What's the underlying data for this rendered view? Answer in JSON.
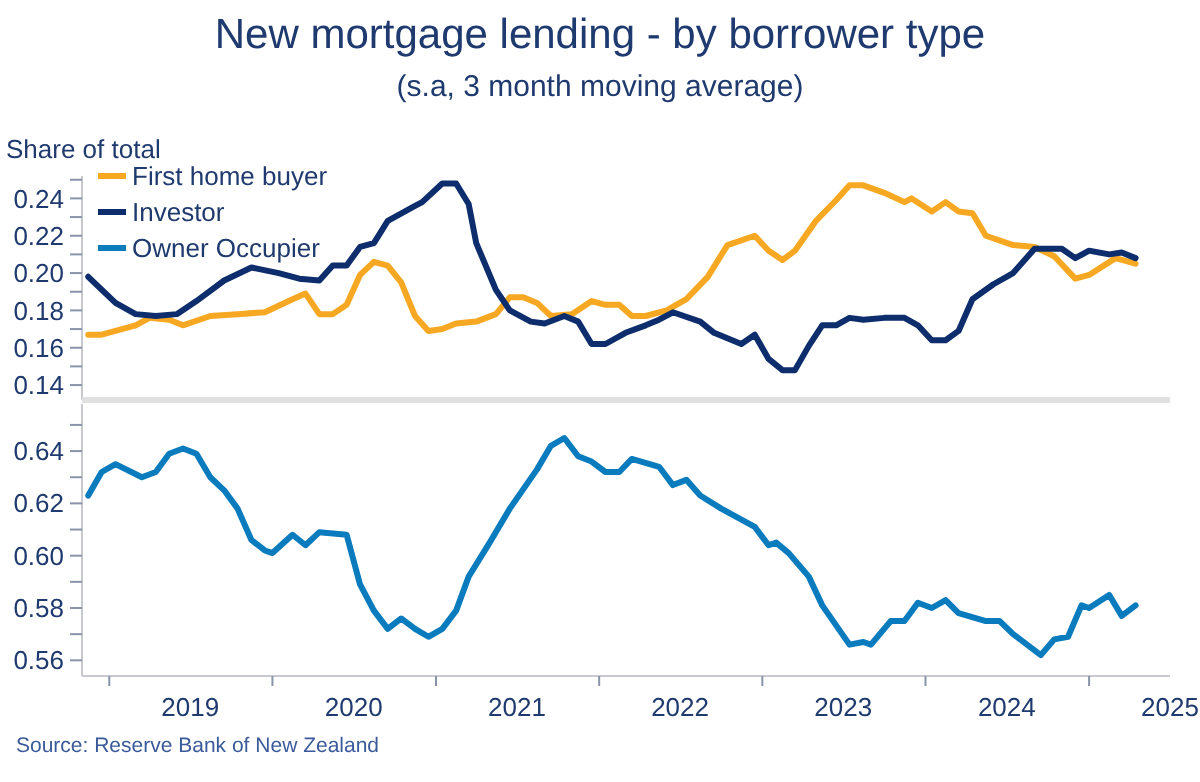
{
  "chart_data": [
    {
      "type": "line",
      "title": "New mortgage lending - by borrower type",
      "subtitle": "(s.a, 3 month moving average)",
      "ylabel": "Share of total",
      "legend": "top left",
      "tick_labels": "y",
      "xlim": [
        "2018-11",
        "2025-07"
      ],
      "ylim": [
        0.132,
        0.252
      ],
      "yticks": [
        {
          "value": 0.14,
          "label": "0.14"
        },
        {
          "value": 0.15,
          "label": null
        },
        {
          "value": 0.16,
          "label": "0.16"
        },
        {
          "value": 0.17,
          "label": null
        },
        {
          "value": 0.18,
          "label": "0.18"
        },
        {
          "value": 0.19,
          "label": null
        },
        {
          "value": 0.2,
          "label": "0.20"
        },
        {
          "value": 0.21,
          "label": null
        },
        {
          "value": 0.22,
          "label": "0.22"
        },
        {
          "value": 0.23,
          "label": null
        },
        {
          "value": 0.24,
          "label": "0.24"
        },
        {
          "value": 0.25,
          "label": null
        }
      ],
      "series": [
        {
          "name": "First home buyer",
          "color": "#f7a823",
          "x": [
            "2018-11-15",
            "2018-12-15",
            "2019-03-01",
            "2019-04-01",
            "2019-05-15",
            "2019-06-15",
            "2019-08-15",
            "2019-10-15",
            "2019-12-15",
            "2020-02-15",
            "2020-03-15",
            "2020-04-15",
            "2020-05-15",
            "2020-06-15",
            "2020-07-15",
            "2020-08-15",
            "2020-09-15",
            "2020-10-15",
            "2020-11-15",
            "2020-12-15",
            "2021-01-15",
            "2021-02-15",
            "2021-04-01",
            "2021-05-15",
            "2021-06-15",
            "2021-07-15",
            "2021-08-15",
            "2021-09-15",
            "2021-11-01",
            "2021-12-15",
            "2022-01-15",
            "2022-02-15",
            "2022-03-15",
            "2022-04-15",
            "2022-06-01",
            "2022-07-15",
            "2022-09-01",
            "2022-10-15",
            "2022-12-15",
            "2023-01-15",
            "2023-02-15",
            "2023-03-15",
            "2023-05-01",
            "2023-06-15",
            "2023-07-15",
            "2023-08-15",
            "2023-10-01",
            "2023-11-15",
            "2023-12-01",
            "2024-01-15",
            "2024-02-15",
            "2024-03-15",
            "2024-04-15",
            "2024-05-15",
            "2024-07-15",
            "2024-09-01",
            "2024-10-15",
            "2024-12-01",
            "2025-01-01",
            "2025-03-01",
            "2025-04-15"
          ],
          "values": [
            0.167,
            0.167,
            0.172,
            0.176,
            0.175,
            0.172,
            0.177,
            0.178,
            0.179,
            0.186,
            0.189,
            0.178,
            0.178,
            0.183,
            0.199,
            0.206,
            0.204,
            0.195,
            0.177,
            0.169,
            0.17,
            0.173,
            0.174,
            0.178,
            0.187,
            0.187,
            0.184,
            0.177,
            0.178,
            0.185,
            0.183,
            0.183,
            0.177,
            0.177,
            0.18,
            0.186,
            0.198,
            0.215,
            0.22,
            0.212,
            0.207,
            0.212,
            0.228,
            0.239,
            0.247,
            0.247,
            0.243,
            0.238,
            0.24,
            0.233,
            0.238,
            0.233,
            0.232,
            0.22,
            0.215,
            0.214,
            0.209,
            0.197,
            0.199,
            0.208,
            0.205
          ]
        },
        {
          "name": "Investor",
          "color": "#0d2d6c",
          "x": [
            "2018-11-15",
            "2019-01-15",
            "2019-03-01",
            "2019-04-15",
            "2019-06-01",
            "2019-07-15",
            "2019-09-15",
            "2019-11-15",
            "2020-01-15",
            "2020-03-01",
            "2020-04-15",
            "2020-05-15",
            "2020-06-15",
            "2020-07-15",
            "2020-08-15",
            "2020-09-15",
            "2020-11-15",
            "2020-12-01",
            "2021-01-15",
            "2021-02-15",
            "2021-03-15",
            "2021-04-01",
            "2021-05-15",
            "2021-06-15",
            "2021-08-01",
            "2021-09-01",
            "2021-10-15",
            "2021-11-15",
            "2021-12-15",
            "2022-01-15",
            "2022-03-01",
            "2022-04-15",
            "2022-05-15",
            "2022-06-15",
            "2022-08-15",
            "2022-09-15",
            "2022-11-15",
            "2022-12-15",
            "2023-01-15",
            "2023-02-15",
            "2023-03-15",
            "2023-04-15",
            "2023-05-15",
            "2023-06-15",
            "2023-07-15",
            "2023-08-15",
            "2023-10-01",
            "2023-11-15",
            "2023-12-15",
            "2024-01-15",
            "2024-02-15",
            "2024-03-15",
            "2024-04-15",
            "2024-06-01",
            "2024-07-15",
            "2024-09-01",
            "2024-11-01",
            "2024-12-01",
            "2025-01-01",
            "2025-02-15",
            "2025-03-15",
            "2025-04-15"
          ],
          "values": [
            0.198,
            0.184,
            0.178,
            0.177,
            0.178,
            0.185,
            0.196,
            0.203,
            0.2,
            0.197,
            0.196,
            0.204,
            0.204,
            0.214,
            0.216,
            0.228,
            0.236,
            0.238,
            0.248,
            0.248,
            0.237,
            0.216,
            0.191,
            0.18,
            0.174,
            0.173,
            0.177,
            0.174,
            0.162,
            0.162,
            0.168,
            0.172,
            0.175,
            0.179,
            0.174,
            0.168,
            0.162,
            0.167,
            0.154,
            0.148,
            0.148,
            0.161,
            0.172,
            0.172,
            0.176,
            0.175,
            0.176,
            0.176,
            0.172,
            0.164,
            0.164,
            0.169,
            0.186,
            0.194,
            0.2,
            0.213,
            0.213,
            0.208,
            0.212,
            0.21,
            0.211,
            0.208
          ]
        }
      ]
    },
    {
      "type": "line",
      "annotations": [
        "Source: Reserve Bank of New Zealand"
      ],
      "xlim": [
        "2018-11",
        "2025-07"
      ],
      "ylim": [
        0.554,
        0.658
      ],
      "xticks": [
        {
          "value": "2019-01-01",
          "label": null
        },
        {
          "value": "2019-07-01",
          "label": "2019"
        },
        {
          "value": "2020-01-01",
          "label": null
        },
        {
          "value": "2020-07-01",
          "label": "2020"
        },
        {
          "value": "2021-01-01",
          "label": null
        },
        {
          "value": "2021-07-01",
          "label": "2021"
        },
        {
          "value": "2022-01-01",
          "label": null
        },
        {
          "value": "2022-07-01",
          "label": "2022"
        },
        {
          "value": "2023-01-01",
          "label": null
        },
        {
          "value": "2023-07-01",
          "label": "2023"
        },
        {
          "value": "2024-01-01",
          "label": null
        },
        {
          "value": "2024-07-01",
          "label": "2024"
        },
        {
          "value": "2025-01-01",
          "label": null
        },
        {
          "value": "2025-07-01",
          "label": "2025"
        }
      ],
      "yticks": [
        {
          "value": 0.56,
          "label": "0.56"
        },
        {
          "value": 0.57,
          "label": null
        },
        {
          "value": 0.58,
          "label": "0.58"
        },
        {
          "value": 0.59,
          "label": null
        },
        {
          "value": 0.6,
          "label": "0.60"
        },
        {
          "value": 0.61,
          "label": null
        },
        {
          "value": 0.62,
          "label": "0.62"
        },
        {
          "value": 0.63,
          "label": null
        },
        {
          "value": 0.64,
          "label": "0.64"
        },
        {
          "value": 0.65,
          "label": null
        }
      ],
      "series": [
        {
          "name": "Owner Occupier",
          "color": "#0a7bbd",
          "x": [
            "2018-11-15",
            "2018-12-15",
            "2019-01-15",
            "2019-03-15",
            "2019-04-15",
            "2019-05-15",
            "2019-06-15",
            "2019-07-15",
            "2019-08-15",
            "2019-09-15",
            "2019-10-15",
            "2019-11-15",
            "2019-12-15",
            "2020-01-01",
            "2020-02-15",
            "2020-03-15",
            "2020-04-15",
            "2020-06-15",
            "2020-07-15",
            "2020-08-15",
            "2020-09-15",
            "2020-10-15",
            "2020-11-15",
            "2020-12-15",
            "2021-01-15",
            "2021-02-15",
            "2021-03-15",
            "2021-05-01",
            "2021-06-15",
            "2021-08-15",
            "2021-09-15",
            "2021-10-15",
            "2021-11-15",
            "2021-12-15",
            "2022-01-15",
            "2022-02-15",
            "2022-03-15",
            "2022-05-15",
            "2022-06-15",
            "2022-07-15",
            "2022-08-15",
            "2022-10-01",
            "2022-12-15",
            "2023-01-15",
            "2023-02-01",
            "2023-03-01",
            "2023-04-15",
            "2023-05-15",
            "2023-07-15",
            "2023-08-15",
            "2023-09-01",
            "2023-10-15",
            "2023-11-15",
            "2023-12-15",
            "2024-01-15",
            "2024-02-15",
            "2024-03-15",
            "2024-05-15",
            "2024-06-15",
            "2024-07-15",
            "2024-09-15",
            "2024-10-15",
            "2024-11-15",
            "2024-12-15",
            "2025-01-01",
            "2025-02-15",
            "2025-03-15",
            "2025-04-15"
          ],
          "values": [
            0.623,
            0.632,
            0.635,
            0.63,
            0.632,
            0.639,
            0.641,
            0.639,
            0.63,
            0.625,
            0.618,
            0.606,
            0.602,
            0.601,
            0.608,
            0.604,
            0.609,
            0.608,
            0.589,
            0.579,
            0.572,
            0.576,
            0.572,
            0.569,
            0.572,
            0.579,
            0.592,
            0.605,
            0.618,
            0.633,
            0.642,
            0.645,
            0.638,
            0.636,
            0.632,
            0.632,
            0.637,
            0.634,
            0.627,
            0.629,
            0.623,
            0.618,
            0.611,
            0.604,
            0.605,
            0.601,
            0.592,
            0.581,
            0.566,
            0.567,
            0.566,
            0.575,
            0.575,
            0.582,
            0.58,
            0.583,
            0.578,
            0.575,
            0.575,
            0.57,
            0.562,
            0.568,
            0.569,
            0.581,
            0.58,
            0.585,
            0.577,
            0.581
          ]
        }
      ]
    }
  ]
}
